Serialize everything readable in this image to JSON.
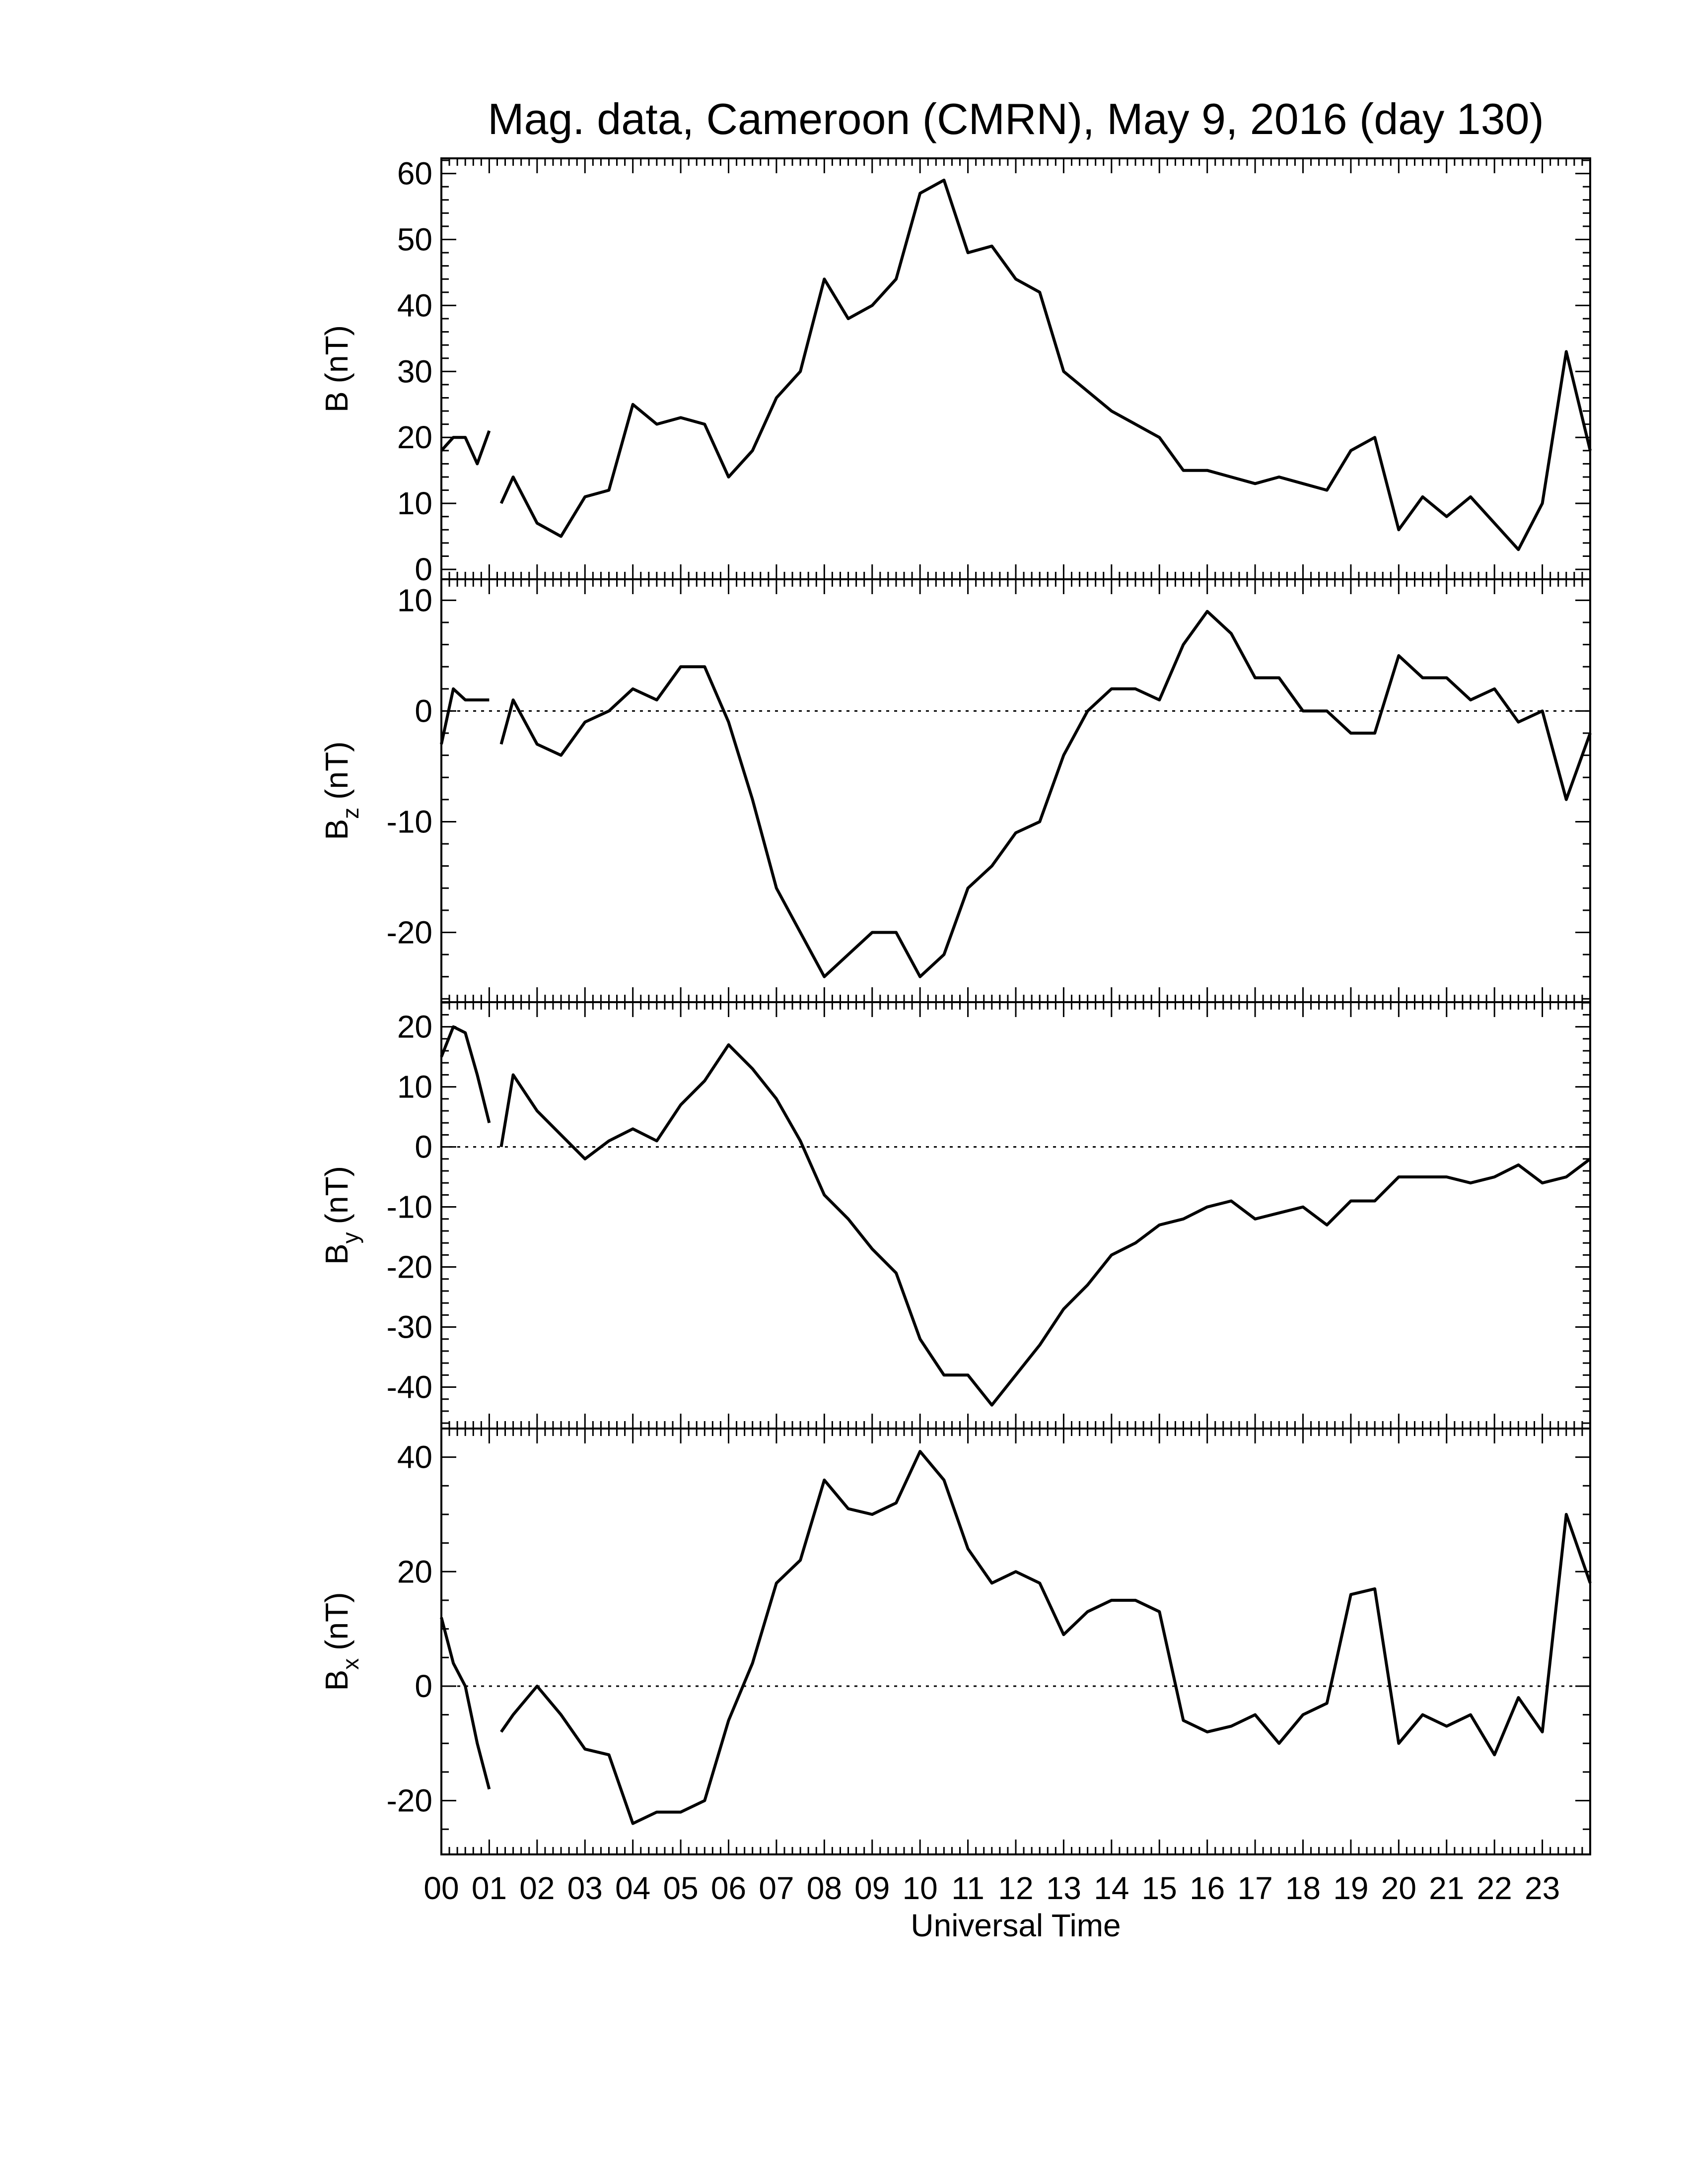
{
  "chart_data": [
    {
      "type": "line",
      "title": "Mag. data, Cameroon (CMRN), May 9, 2016 (day 130)",
      "ylabel_main": "B",
      "ylabel_unit": "(nT)",
      "xlim": [
        0,
        24
      ],
      "xticks": [
        0,
        1,
        2,
        3,
        4,
        5,
        6,
        7,
        8,
        9,
        10,
        11,
        12,
        13,
        14,
        15,
        16,
        17,
        18,
        19,
        20,
        21,
        22,
        23,
        24
      ],
      "xminor": 6,
      "ylim": [
        -1.5,
        62.3
      ],
      "yticks": [
        0,
        10,
        20,
        30,
        40,
        50,
        60
      ],
      "yminor": 5,
      "color": "#000000",
      "zero_line": false,
      "x": [
        0,
        0.25,
        0.5,
        0.75,
        1.0,
        1.1,
        1.25,
        1.5,
        2,
        2.5,
        3,
        3.5,
        4,
        4.5,
        5,
        5.5,
        6,
        6.5,
        7,
        7.5,
        8,
        8.5,
        9,
        9.5,
        10,
        10.5,
        11,
        11.5,
        12,
        12.5,
        13,
        13.5,
        14,
        14.5,
        15,
        15.5,
        16,
        16.5,
        17,
        17.5,
        18,
        18.5,
        19,
        19.5,
        20,
        20.5,
        21,
        21.5,
        22,
        22.5,
        23,
        23.5,
        24
      ],
      "values": [
        18,
        20,
        20,
        16,
        21,
        null,
        10,
        14,
        7,
        5,
        11,
        12,
        25,
        22,
        23,
        22,
        14,
        18,
        26,
        30,
        44,
        38,
        40,
        44,
        57,
        59,
        48,
        49,
        44,
        42,
        30,
        27,
        24,
        22,
        20,
        15,
        15,
        14,
        13,
        14,
        13,
        12,
        18,
        20,
        6,
        11,
        8,
        11,
        7,
        3,
        10,
        33,
        18
      ]
    },
    {
      "type": "line",
      "ylabel_main": "B",
      "ylabel_sub": "z",
      "ylabel_unit": "(nT)",
      "xlim": [
        0,
        24
      ],
      "xticks": [
        0,
        1,
        2,
        3,
        4,
        5,
        6,
        7,
        8,
        9,
        10,
        11,
        12,
        13,
        14,
        15,
        16,
        17,
        18,
        19,
        20,
        21,
        22,
        23,
        24
      ],
      "xminor": 6,
      "ylim": [
        -26.3,
        11.9
      ],
      "yticks": [
        -20,
        -10,
        0,
        10
      ],
      "yminor": 5,
      "color": "#000000",
      "zero_line": true,
      "x": [
        0,
        0.25,
        0.5,
        0.75,
        1.0,
        1.1,
        1.25,
        1.5,
        2,
        2.5,
        3,
        3.5,
        4,
        4.5,
        5,
        5.5,
        6,
        6.5,
        7,
        7.5,
        8,
        8.5,
        9,
        9.5,
        10,
        10.5,
        11,
        11.5,
        12,
        12.5,
        13,
        13.5,
        14,
        14.5,
        15,
        15.5,
        16,
        16.5,
        17,
        17.5,
        18,
        18.5,
        19,
        19.5,
        20,
        20.5,
        21,
        21.5,
        22,
        22.5,
        23,
        23.5,
        24
      ],
      "values": [
        -3,
        2,
        1,
        1,
        1,
        null,
        -3,
        1,
        -3,
        -4,
        -1,
        0,
        2,
        1,
        4,
        4,
        -1,
        -8,
        -16,
        -20,
        -24,
        -22,
        -20,
        -20,
        -24,
        -22,
        -16,
        -14,
        -11,
        -10,
        -4,
        0,
        2,
        2,
        1,
        6,
        9,
        7,
        3,
        3,
        0,
        0,
        -2,
        -2,
        5,
        3,
        3,
        1,
        2,
        -1,
        0,
        -8,
        -2
      ]
    },
    {
      "type": "line",
      "ylabel_main": "B",
      "ylabel_sub": "y",
      "ylabel_unit": "(nT)",
      "xlim": [
        0,
        24
      ],
      "xticks": [
        0,
        1,
        2,
        3,
        4,
        5,
        6,
        7,
        8,
        9,
        10,
        11,
        12,
        13,
        14,
        15,
        16,
        17,
        18,
        19,
        20,
        21,
        22,
        23,
        24
      ],
      "xminor": 6,
      "ylim": [
        -46.9,
        24.1
      ],
      "yticks": [
        -40,
        -30,
        -20,
        -10,
        0,
        10,
        20
      ],
      "yminor": 5,
      "color": "#000000",
      "zero_line": true,
      "x": [
        0,
        0.25,
        0.5,
        0.75,
        1.0,
        1.1,
        1.25,
        1.5,
        2,
        2.5,
        3,
        3.5,
        4,
        4.5,
        5,
        5.5,
        6,
        6.5,
        7,
        7.5,
        8,
        8.5,
        9,
        9.5,
        10,
        10.5,
        11,
        11.5,
        12,
        12.5,
        13,
        13.5,
        14,
        14.5,
        15,
        15.5,
        16,
        16.5,
        17,
        17.5,
        18,
        18.5,
        19,
        19.5,
        20,
        20.5,
        21,
        21.5,
        22,
        22.5,
        23,
        23.5,
        24
      ],
      "values": [
        15,
        20,
        19,
        12,
        4,
        null,
        0,
        12,
        6,
        2,
        -2,
        1,
        3,
        1,
        7,
        11,
        17,
        13,
        8,
        1,
        -8,
        -12,
        -17,
        -21,
        -32,
        -38,
        -38,
        -43,
        -38,
        -33,
        -27,
        -23,
        -18,
        -16,
        -13,
        -12,
        -10,
        -9,
        -12,
        -11,
        -10,
        -13,
        -9,
        -9,
        -5,
        -5,
        -5,
        -6,
        -5,
        -3,
        -6,
        -5,
        -2
      ]
    },
    {
      "type": "line",
      "ylabel_main": "B",
      "ylabel_sub": "x",
      "ylabel_unit": "(nT)",
      "xlabel": "Universal Time",
      "xlim": [
        0,
        24
      ],
      "xticks": [
        {
          "value": 0,
          "label": "00"
        },
        {
          "value": 1,
          "label": "01"
        },
        {
          "value": 2,
          "label": "02"
        },
        {
          "value": 3,
          "label": "03"
        },
        {
          "value": 4,
          "label": "04"
        },
        {
          "value": 5,
          "label": "05"
        },
        {
          "value": 6,
          "label": "06"
        },
        {
          "value": 7,
          "label": "07"
        },
        {
          "value": 8,
          "label": "08"
        },
        {
          "value": 9,
          "label": "09"
        },
        {
          "value": 10,
          "label": "10"
        },
        {
          "value": 11,
          "label": "11"
        },
        {
          "value": 12,
          "label": "12"
        },
        {
          "value": 13,
          "label": "13"
        },
        {
          "value": 14,
          "label": "14"
        },
        {
          "value": 15,
          "label": "15"
        },
        {
          "value": 16,
          "label": "16"
        },
        {
          "value": 17,
          "label": "17"
        },
        {
          "value": 18,
          "label": "18"
        },
        {
          "value": 19,
          "label": "19"
        },
        {
          "value": 20,
          "label": "20"
        },
        {
          "value": 21,
          "label": "21"
        },
        {
          "value": 22,
          "label": "22"
        },
        {
          "value": 23,
          "label": "23"
        },
        24
      ],
      "xminor": 6,
      "ylim": [
        -29.4,
        45
      ],
      "yticks": [
        -20,
        0,
        20,
        40
      ],
      "yminor": 4,
      "color": "#000000",
      "zero_line": true,
      "x": [
        0,
        0.25,
        0.5,
        0.75,
        1.0,
        1.1,
        1.25,
        1.5,
        2,
        2.5,
        3,
        3.5,
        4,
        4.5,
        5,
        5.5,
        6,
        6.5,
        7,
        7.5,
        8,
        8.5,
        9,
        9.5,
        10,
        10.5,
        11,
        11.5,
        12,
        12.5,
        13,
        13.5,
        14,
        14.5,
        15,
        15.5,
        16,
        16.5,
        17,
        17.5,
        18,
        18.5,
        19,
        19.5,
        20,
        20.5,
        21,
        21.5,
        22,
        22.5,
        23,
        23.5,
        24
      ],
      "values": [
        12,
        4,
        0,
        -10,
        -18,
        null,
        -8,
        -5,
        0,
        -5,
        -11,
        -12,
        -24,
        -22,
        -22,
        -20,
        -6,
        4,
        18,
        22,
        36,
        31,
        30,
        32,
        41,
        36,
        24,
        18,
        20,
        18,
        9,
        13,
        15,
        15,
        13,
        -6,
        -8,
        -7,
        -5,
        -10,
        -5,
        -3,
        16,
        17,
        -10,
        -5,
        -7,
        -5,
        -12,
        -2,
        -8,
        30,
        18
      ]
    }
  ]
}
